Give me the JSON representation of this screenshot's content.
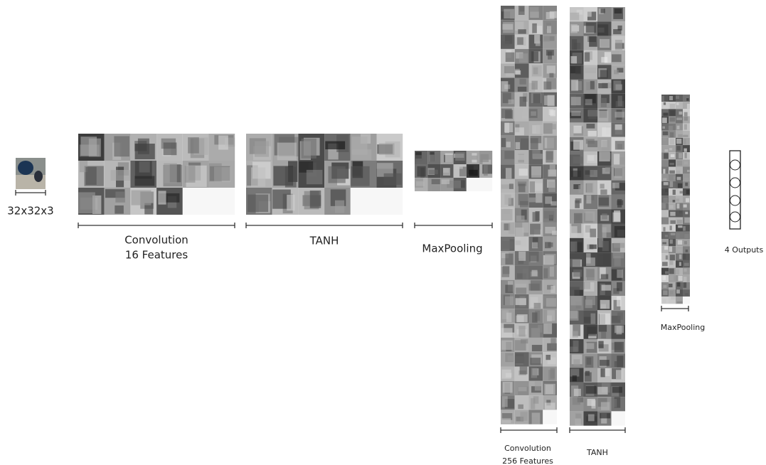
{
  "stages": [
    {
      "label": [
        "32x32x3"
      ]
    },
    {
      "label": [
        "Convolution",
        "16 Features"
      ]
    },
    {
      "label": [
        "TANH"
      ]
    },
    {
      "label": [
        "MaxPooling"
      ]
    },
    {
      "label": [
        "Convolution",
        "256 Features"
      ]
    },
    {
      "label": [
        "TANH"
      ]
    },
    {
      "label": [
        "MaxPooling"
      ]
    },
    {
      "label": [
        "4 Outputs"
      ]
    }
  ]
}
